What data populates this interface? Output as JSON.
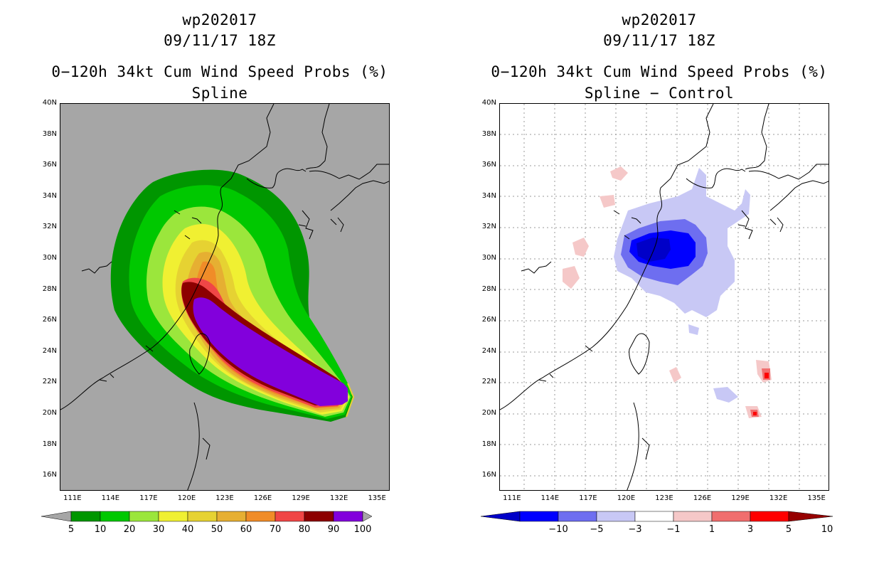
{
  "left": {
    "storm_id": "wp202017",
    "datetime": "09/11/17 18Z",
    "product": "0−120h 34kt Cum Wind Speed Probs (%)",
    "subtitle": "Spline",
    "bg_color": "#a6a6a6",
    "colorbar": {
      "labels": [
        "5",
        "10",
        "20",
        "30",
        "40",
        "50",
        "60",
        "70",
        "80",
        "90",
        "100"
      ],
      "colors": [
        "#009600",
        "#00c800",
        "#9be63c",
        "#f0f032",
        "#e6d232",
        "#e6af32",
        "#f08c28",
        "#f04646",
        "#8c0000",
        "#8200dc"
      ]
    }
  },
  "right": {
    "storm_id": "wp202017",
    "datetime": "09/11/17 18Z",
    "product": "0−120h 34kt Cum Wind Speed Probs (%)",
    "subtitle": "Spline − Control",
    "bg_color": "#ffffff",
    "colorbar": {
      "labels": [
        "−10",
        "−5",
        "−3",
        "−1",
        "1",
        "3",
        "5",
        "10"
      ],
      "colors": [
        "#0000c8",
        "#0000ff",
        "#6e6ef0",
        "#c8c8f5",
        "#ffffff",
        "#f5c8c8",
        "#f06e6e",
        "#ff0000",
        "#960000"
      ]
    }
  },
  "axes": {
    "lat_labels": [
      "40N",
      "38N",
      "36N",
      "34N",
      "32N",
      "30N",
      "28N",
      "26N",
      "24N",
      "22N",
      "20N",
      "18N",
      "16N"
    ],
    "lon_labels": [
      "111E",
      "114E",
      "117E",
      "120E",
      "123E",
      "126E",
      "129E",
      "132E",
      "135E"
    ],
    "lat_range": [
      15,
      40
    ],
    "lon_range": [
      110,
      136
    ]
  },
  "icons": {
    "colorbar_arrows": "triangle-icon"
  }
}
